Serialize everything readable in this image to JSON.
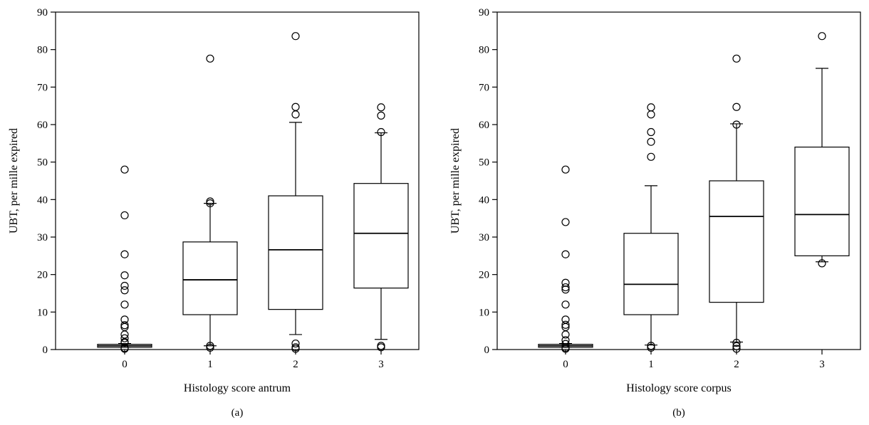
{
  "chart_data": [
    {
      "type": "box",
      "panel_label": "(a)",
      "xlabel": "Histology score antrum",
      "ylabel": "UBT, per mille expired",
      "ylim": [
        0,
        90
      ],
      "yticks": [
        0,
        10,
        20,
        30,
        40,
        50,
        60,
        70,
        80,
        90
      ],
      "categories": [
        "0",
        "1",
        "2",
        "3"
      ],
      "boxes": [
        {
          "category": "0",
          "whisker_low": 0.6,
          "q1": 0.6,
          "median": 1.0,
          "q3": 1.4,
          "whisker_high": 1.6,
          "outliers": [
            48,
            35.8,
            25.4,
            19.8,
            17,
            15.8,
            12,
            8,
            6.5,
            6,
            4,
            3,
            2,
            1.8,
            0.4,
            0.2
          ]
        },
        {
          "category": "1",
          "whisker_low": 1.0,
          "q1": 9.3,
          "median": 18.6,
          "q3": 28.7,
          "whisker_high": 39.0,
          "outliers": [
            77.6,
            39.5,
            39.0,
            1.0,
            0.5
          ]
        },
        {
          "category": "2",
          "whisker_low": 4.0,
          "q1": 10.7,
          "median": 26.6,
          "q3": 41.0,
          "whisker_high": 60.6,
          "outliers": [
            83.6,
            64.7,
            62.7,
            1.6,
            0.6,
            0.2
          ]
        },
        {
          "category": "3",
          "whisker_low": 2.7,
          "q1": 16.4,
          "median": 31.0,
          "q3": 44.3,
          "whisker_high": 57.8,
          "outliers": [
            64.6,
            62.4,
            58.0,
            1.0,
            0.6
          ]
        }
      ]
    },
    {
      "type": "box",
      "panel_label": "(b)",
      "xlabel": "Histology score corpus",
      "ylabel": "UBT, per mille expired",
      "ylim": [
        0,
        90
      ],
      "yticks": [
        0,
        10,
        20,
        30,
        40,
        50,
        60,
        70,
        80,
        90
      ],
      "categories": [
        "0",
        "1",
        "2",
        "3"
      ],
      "boxes": [
        {
          "category": "0",
          "whisker_low": 0.6,
          "q1": 0.6,
          "median": 1.0,
          "q3": 1.4,
          "whisker_high": 1.6,
          "outliers": [
            48,
            34,
            25.4,
            17.8,
            16.6,
            16,
            12,
            8,
            6.6,
            6,
            4,
            2.5,
            1.5,
            0.5,
            0.2
          ]
        },
        {
          "category": "1",
          "whisker_low": 1.2,
          "q1": 9.3,
          "median": 17.4,
          "q3": 31.0,
          "whisker_high": 43.7,
          "outliers": [
            64.6,
            62.7,
            58.0,
            55.4,
            51.4,
            1.0,
            0.5
          ]
        },
        {
          "category": "2",
          "whisker_low": 2.0,
          "q1": 12.6,
          "median": 35.5,
          "q3": 45.0,
          "whisker_high": 60.2,
          "outliers": [
            77.6,
            64.7,
            60.0,
            1.8,
            0.9,
            0.2
          ]
        },
        {
          "category": "3",
          "whisker_low": 23.4,
          "q1": 25.0,
          "median": 36.0,
          "q3": 54.0,
          "whisker_high": 75.0,
          "outliers": [
            83.6,
            23.0
          ]
        }
      ]
    }
  ]
}
